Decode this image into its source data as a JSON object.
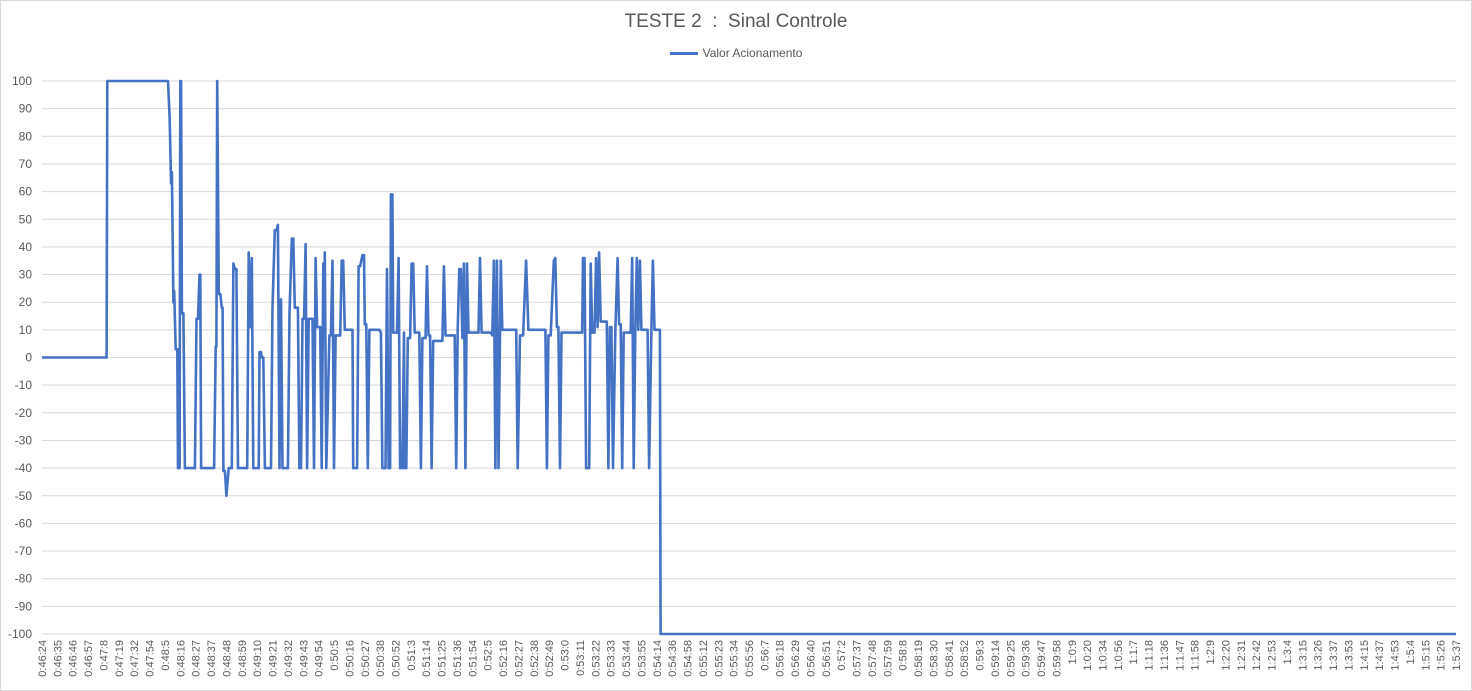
{
  "chart_data": {
    "type": "line",
    "title": "TESTE 2  :  Sinal Controle",
    "xlabel": "",
    "ylabel": "",
    "ylim": [
      -100,
      100
    ],
    "yticks": [
      100,
      90,
      80,
      70,
      60,
      50,
      40,
      30,
      20,
      10,
      0,
      -10,
      -20,
      -30,
      -40,
      -50,
      -60,
      -70,
      -80,
      -90,
      -100
    ],
    "grid": true,
    "legend_position": "top-center",
    "categories": [
      "0:46:24",
      "0:46:35",
      "0:46:46",
      "0:46:57",
      "0:47:8",
      "0:47:19",
      "0:47:32",
      "0:47:54",
      "0:48:5",
      "0:48:16",
      "0:48:27",
      "0:48:37",
      "0:48:48",
      "0:48:59",
      "0:49:10",
      "0:49:21",
      "0:49:32",
      "0:49:43",
      "0:49:54",
      "0:50:5",
      "0:50:16",
      "0:50:27",
      "0:50:38",
      "0:50:52",
      "0:51:3",
      "0:51:14",
      "0:51:25",
      "0:51:36",
      "0:51:54",
      "0:52:5",
      "0:52:16",
      "0:52:27",
      "0:52:38",
      "0:52:49",
      "0:53:0",
      "0:53:11",
      "0:53:22",
      "0:53:33",
      "0:53:44",
      "0:53:55",
      "0:54:14",
      "0:54:36",
      "0:54:58",
      "0:55:12",
      "0:55:23",
      "0:55:34",
      "0:55:56",
      "0:56:7",
      "0:56:18",
      "0:56:29",
      "0:56:40",
      "0:56:51",
      "0:57:2",
      "0:57:37",
      "0:57:48",
      "0:57:59",
      "0:58:8",
      "0:58:19",
      "0:58:30",
      "0:58:41",
      "0:58:52",
      "0:59:3",
      "0:59:14",
      "0:59:25",
      "0:59:36",
      "0:59:47",
      "0:59:58",
      "1:0:9",
      "1:0:20",
      "1:0:34",
      "1:0:56",
      "1:1:7",
      "1:1:18",
      "1:1:36",
      "1:1:47",
      "1:1:58",
      "1:2:9",
      "1:2:20",
      "1:2:31",
      "1:2:42",
      "1:2:53",
      "1:3:4",
      "1:3:15",
      "1:3:26",
      "1:3:37",
      "1:3:53",
      "1:4:15",
      "1:4:37",
      "1:4:53",
      "1:5:4",
      "1:5:15",
      "1:5:26",
      "1:5:37"
    ],
    "series": [
      {
        "name": "Valor Acionamento",
        "color": "#4472c4",
        "points": [
          [
            0,
            0
          ],
          [
            4.2,
            0
          ],
          [
            4.25,
            100
          ],
          [
            8.2,
            100
          ],
          [
            8.3,
            87
          ],
          [
            8.4,
            63
          ],
          [
            8.45,
            67
          ],
          [
            8.55,
            20
          ],
          [
            8.6,
            24
          ],
          [
            8.7,
            3
          ],
          [
            8.8,
            3
          ],
          [
            8.85,
            -40
          ],
          [
            8.95,
            -40
          ],
          [
            9.0,
            100
          ],
          [
            9.05,
            100
          ],
          [
            9.1,
            16
          ],
          [
            9.2,
            16
          ],
          [
            9.3,
            -40
          ],
          [
            9.95,
            -40
          ],
          [
            10.05,
            14
          ],
          [
            10.15,
            14
          ],
          [
            10.25,
            30
          ],
          [
            10.3,
            30
          ],
          [
            10.35,
            -40
          ],
          [
            11.2,
            -40
          ],
          [
            11.3,
            4
          ],
          [
            11.35,
            4
          ],
          [
            11.4,
            100
          ],
          [
            11.5,
            23
          ],
          [
            11.6,
            23
          ],
          [
            11.7,
            18
          ],
          [
            11.75,
            18
          ],
          [
            11.8,
            -41
          ],
          [
            11.9,
            -41
          ],
          [
            12.0,
            -50
          ],
          [
            12.15,
            -40
          ],
          [
            12.35,
            -40
          ],
          [
            12.45,
            34
          ],
          [
            12.55,
            32
          ],
          [
            12.65,
            32
          ],
          [
            12.75,
            -40
          ],
          [
            13.35,
            -40
          ],
          [
            13.45,
            38
          ],
          [
            13.55,
            11
          ],
          [
            13.65,
            36
          ],
          [
            13.75,
            -40
          ],
          [
            14.1,
            -40
          ],
          [
            14.15,
            2
          ],
          [
            14.25,
            2
          ],
          [
            14.3,
            0
          ],
          [
            14.4,
            0
          ],
          [
            14.5,
            -40
          ],
          [
            14.9,
            -40
          ],
          [
            15.0,
            18
          ],
          [
            15.15,
            46
          ],
          [
            15.25,
            46
          ],
          [
            15.35,
            48
          ],
          [
            15.45,
            -40
          ],
          [
            15.55,
            21
          ],
          [
            15.65,
            -40
          ],
          [
            16.0,
            -40
          ],
          [
            16.1,
            16
          ],
          [
            16.25,
            43
          ],
          [
            16.35,
            43
          ],
          [
            16.45,
            18
          ],
          [
            16.65,
            18
          ],
          [
            16.75,
            -40
          ],
          [
            16.85,
            -40
          ],
          [
            16.95,
            14
          ],
          [
            17.05,
            14
          ],
          [
            17.15,
            41
          ],
          [
            17.25,
            -40
          ],
          [
            17.35,
            14
          ],
          [
            17.6,
            14
          ],
          [
            17.7,
            -40
          ],
          [
            17.8,
            36
          ],
          [
            17.9,
            11
          ],
          [
            18.1,
            11
          ],
          [
            18.2,
            -40
          ],
          [
            18.3,
            34
          ],
          [
            18.35,
            9
          ],
          [
            18.4,
            38
          ],
          [
            18.5,
            -40
          ],
          [
            18.7,
            8
          ],
          [
            18.8,
            8
          ],
          [
            18.9,
            35
          ],
          [
            19.0,
            -40
          ],
          [
            19.1,
            8
          ],
          [
            19.4,
            8
          ],
          [
            19.5,
            35
          ],
          [
            19.6,
            35
          ],
          [
            19.7,
            10
          ],
          [
            20.2,
            10
          ],
          [
            20.25,
            -40
          ],
          [
            20.5,
            -40
          ],
          [
            20.6,
            33
          ],
          [
            20.7,
            33
          ],
          [
            20.85,
            37
          ],
          [
            20.95,
            37
          ],
          [
            21.0,
            12
          ],
          [
            21.1,
            12
          ],
          [
            21.2,
            -40
          ],
          [
            21.3,
            10
          ],
          [
            21.95,
            10
          ],
          [
            22.05,
            9
          ],
          [
            22.15,
            -40
          ],
          [
            22.35,
            -40
          ],
          [
            22.45,
            32
          ],
          [
            22.55,
            -40
          ],
          [
            22.65,
            -40
          ],
          [
            22.7,
            59
          ],
          [
            22.8,
            59
          ],
          [
            22.85,
            9
          ],
          [
            23.1,
            9
          ],
          [
            23.2,
            36
          ],
          [
            23.3,
            -40
          ],
          [
            23.45,
            -40
          ],
          [
            23.55,
            9
          ],
          [
            23.6,
            -40
          ],
          [
            23.7,
            -40
          ],
          [
            23.8,
            7
          ],
          [
            23.95,
            7
          ],
          [
            24.05,
            34
          ],
          [
            24.15,
            34
          ],
          [
            24.25,
            9
          ],
          [
            24.55,
            9
          ],
          [
            24.65,
            -40
          ],
          [
            24.75,
            7
          ],
          [
            24.95,
            7
          ],
          [
            25.05,
            33
          ],
          [
            25.15,
            8
          ],
          [
            25.25,
            8
          ],
          [
            25.35,
            -40
          ],
          [
            25.45,
            6
          ],
          [
            26.05,
            6
          ],
          [
            26.15,
            33
          ],
          [
            26.25,
            8
          ],
          [
            26.85,
            8
          ],
          [
            26.95,
            -40
          ],
          [
            27.05,
            10
          ],
          [
            27.15,
            32
          ],
          [
            27.25,
            32
          ],
          [
            27.35,
            7
          ],
          [
            27.45,
            34
          ],
          [
            27.55,
            -40
          ],
          [
            27.65,
            34
          ],
          [
            27.75,
            9
          ],
          [
            28.4,
            9
          ],
          [
            28.5,
            36
          ],
          [
            28.6,
            9
          ],
          [
            29.2,
            9
          ],
          [
            29.3,
            8
          ],
          [
            29.4,
            35
          ],
          [
            29.5,
            -40
          ],
          [
            29.6,
            35
          ],
          [
            29.7,
            -40
          ],
          [
            29.8,
            9
          ],
          [
            29.85,
            35
          ],
          [
            29.95,
            10
          ],
          [
            30.85,
            10
          ],
          [
            30.95,
            -40
          ],
          [
            31.1,
            8
          ],
          [
            31.3,
            8
          ],
          [
            31.5,
            35
          ],
          [
            31.65,
            10
          ],
          [
            32.75,
            10
          ],
          [
            32.85,
            -40
          ],
          [
            32.95,
            8
          ],
          [
            33.1,
            8
          ],
          [
            33.3,
            35
          ],
          [
            33.4,
            36
          ],
          [
            33.5,
            11
          ],
          [
            33.6,
            11
          ],
          [
            33.7,
            -40
          ],
          [
            33.8,
            9
          ],
          [
            35.15,
            9
          ],
          [
            35.2,
            36
          ],
          [
            35.3,
            36
          ],
          [
            35.4,
            -40
          ],
          [
            35.6,
            -40
          ],
          [
            35.7,
            34
          ],
          [
            35.8,
            9
          ],
          [
            35.95,
            9
          ],
          [
            36.05,
            36
          ],
          [
            36.15,
            11
          ],
          [
            36.25,
            38
          ],
          [
            36.35,
            13
          ],
          [
            36.75,
            13
          ],
          [
            36.85,
            -40
          ],
          [
            36.95,
            11
          ],
          [
            37.05,
            11
          ],
          [
            37.15,
            -40
          ],
          [
            37.3,
            9
          ],
          [
            37.45,
            36
          ],
          [
            37.55,
            12
          ],
          [
            37.65,
            12
          ],
          [
            37.75,
            -40
          ],
          [
            37.85,
            9
          ],
          [
            38.3,
            9
          ],
          [
            38.4,
            36
          ],
          [
            38.5,
            -40
          ],
          [
            38.6,
            10
          ],
          [
            38.7,
            36
          ],
          [
            38.8,
            10
          ],
          [
            38.9,
            35
          ],
          [
            39.0,
            10
          ],
          [
            39.4,
            10
          ],
          [
            39.5,
            -40
          ],
          [
            39.65,
            10
          ],
          [
            39.75,
            35
          ],
          [
            39.85,
            10
          ],
          [
            40.2,
            10
          ],
          [
            40.25,
            -100
          ],
          [
            92,
            -100
          ]
        ]
      }
    ]
  }
}
